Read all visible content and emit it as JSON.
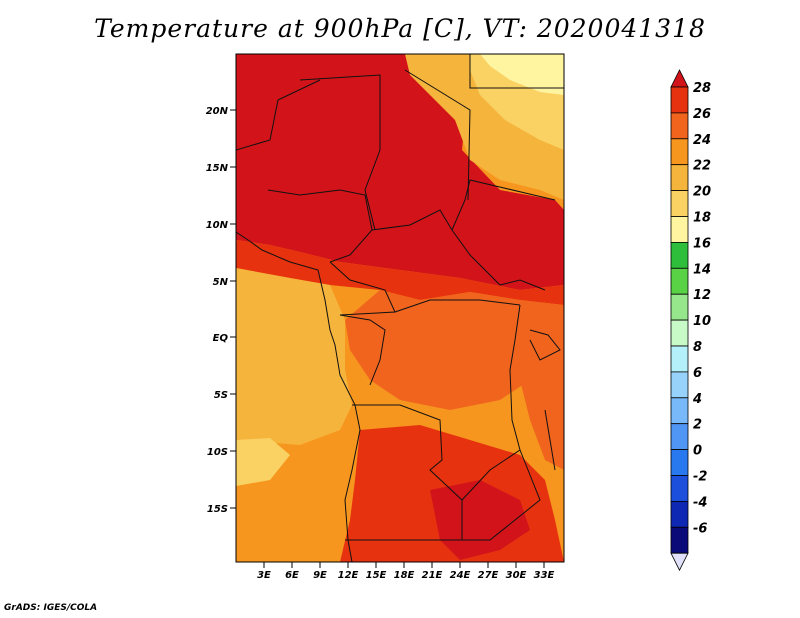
{
  "title": "Temperature at 900hPa [C], VT: 2020041318",
  "credit": "GrADS: IGES/COLA",
  "map": {
    "lat_ticks": [
      "20N",
      "15N",
      "10N",
      "5N",
      "EQ",
      "5S",
      "10S",
      "15S"
    ],
    "lon_ticks": [
      "3E",
      "6E",
      "9E",
      "12E",
      "15E",
      "18E",
      "21E",
      "24E",
      "27E",
      "30E",
      "33E"
    ]
  },
  "colorbar": {
    "labels": [
      "28",
      "26",
      "24",
      "22",
      "20",
      "18",
      "16",
      "14",
      "12",
      "10",
      "8",
      "6",
      "4",
      "2",
      "0",
      "-2",
      "-4",
      "-6"
    ],
    "colors": [
      "#d2141a",
      "#e6320f",
      "#f0641e",
      "#f6961e",
      "#f5b43c",
      "#fad264",
      "#fff5a0",
      "#2ebe3c",
      "#5ad246",
      "#96e68c",
      "#c8fac8",
      "#b4f0fa",
      "#96d2fa",
      "#78b9fa",
      "#5096f5",
      "#2878f0",
      "#1c50dc",
      "#0f28b4",
      "#0a0a78",
      "#e1e1fa"
    ]
  },
  "field": {
    "units": "C",
    "regions": {
      "sahara_north_west": 26,
      "sahel": 26,
      "sudan_chad": 26,
      "egypt_libya_ne": 20,
      "atlantic_west": 21,
      "atlantic_sw": 19,
      "congo_basin": 24,
      "angola_zambia": 25,
      "east_africa_lakes": 24
    }
  }
}
